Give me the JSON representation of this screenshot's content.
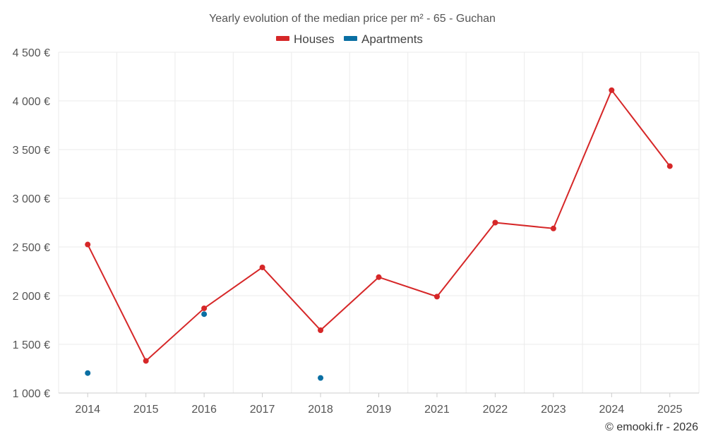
{
  "chart_data": {
    "type": "line",
    "title": "Yearly evolution of the median price per m² - 65 - Guchan",
    "categories": [
      "2014",
      "2015",
      "2016",
      "2017",
      "2018",
      "2019",
      "2021",
      "2022",
      "2023",
      "2024",
      "2025"
    ],
    "y_ticks": [
      "1 000 €",
      "1 500 €",
      "2 000 €",
      "2 500 €",
      "3 000 €",
      "3 500 €",
      "4 000 €",
      "4 500 €"
    ],
    "y_tick_values": [
      1000,
      1500,
      2000,
      2500,
      3000,
      3500,
      4000,
      4500
    ],
    "ylim": [
      1000,
      4500
    ],
    "grid": true,
    "legend_position": "top-center",
    "series": [
      {
        "name": "Houses",
        "color": "#d62728",
        "line": true,
        "values": [
          2525,
          1330,
          1870,
          2290,
          1645,
          2190,
          1990,
          2750,
          2690,
          4110,
          3330
        ]
      },
      {
        "name": "Apartments",
        "color": "#0a6fa3",
        "line": false,
        "values": [
          1205,
          null,
          1810,
          null,
          1155,
          null,
          null,
          null,
          null,
          null,
          null
        ]
      }
    ],
    "credit": "© emooki.fr - 2026"
  }
}
